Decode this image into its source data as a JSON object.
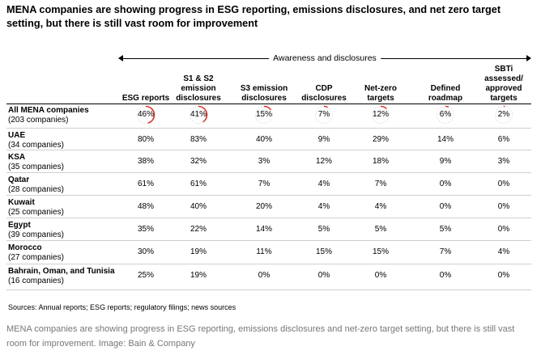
{
  "title": "MENA companies are showing progress in ESG reporting, emissions disclosures, and net zero target setting, but there is still vast room for improvement",
  "group_label": "Awareness and disclosures",
  "source": "Sources: Annual reports; ESG reports; regulatory filings; news sources",
  "caption": "MENA companies are showing progress in ESG reporting, emissions disclosures and net-zero target setting, but there is still vast room for improvement. Image: Bain & Company",
  "accent_color": "#d9352b",
  "chart_data": {
    "type": "table",
    "title": "MENA companies are showing progress in ESG reporting, emissions disclosures, and net zero target setting, but there is still vast room for improvement",
    "columns": [
      "ESG reports",
      "S1 & S2 emission disclosures",
      "S3 emission disclosures",
      "CDP disclosures",
      "Net-zero targets",
      "Defined roadmap",
      "SBTi assessed/ approved targets"
    ],
    "column_lines": [
      [
        "ESG reports"
      ],
      [
        "S1 & S2",
        "emission",
        "disclosures"
      ],
      [
        "S3 emission",
        "disclosures"
      ],
      [
        "CDP",
        "disclosures"
      ],
      [
        "Net-zero",
        "targets"
      ],
      [
        "Defined",
        "roadmap"
      ],
      [
        "SBTi",
        "assessed/",
        "approved",
        "targets"
      ]
    ],
    "rows": [
      {
        "name": "All MENA companies",
        "count": "(203 companies)",
        "values": [
          46,
          41,
          15,
          7,
          12,
          6,
          2
        ]
      },
      {
        "name": "UAE",
        "count": "(34 companies)",
        "values": [
          80,
          83,
          40,
          9,
          29,
          14,
          6
        ]
      },
      {
        "name": "KSA",
        "count": "(35 companies)",
        "values": [
          38,
          32,
          3,
          12,
          18,
          9,
          3
        ]
      },
      {
        "name": "Qatar",
        "count": "(28 companies)",
        "values": [
          61,
          61,
          7,
          4,
          7,
          0,
          0
        ]
      },
      {
        "name": "Kuwait",
        "count": "(25 companies)",
        "values": [
          48,
          40,
          20,
          4,
          4,
          0,
          0
        ]
      },
      {
        "name": "Egypt",
        "count": "(39 companies)",
        "values": [
          35,
          22,
          14,
          5,
          5,
          5,
          0
        ]
      },
      {
        "name": "Morocco",
        "count": "(27 companies)",
        "values": [
          30,
          19,
          11,
          15,
          15,
          7,
          4
        ]
      },
      {
        "name": "Bahrain, Oman, and Tunisia",
        "count": "(16 companies)",
        "values": [
          25,
          19,
          0,
          0,
          0,
          0,
          0
        ]
      }
    ],
    "value_suffix": "%"
  }
}
